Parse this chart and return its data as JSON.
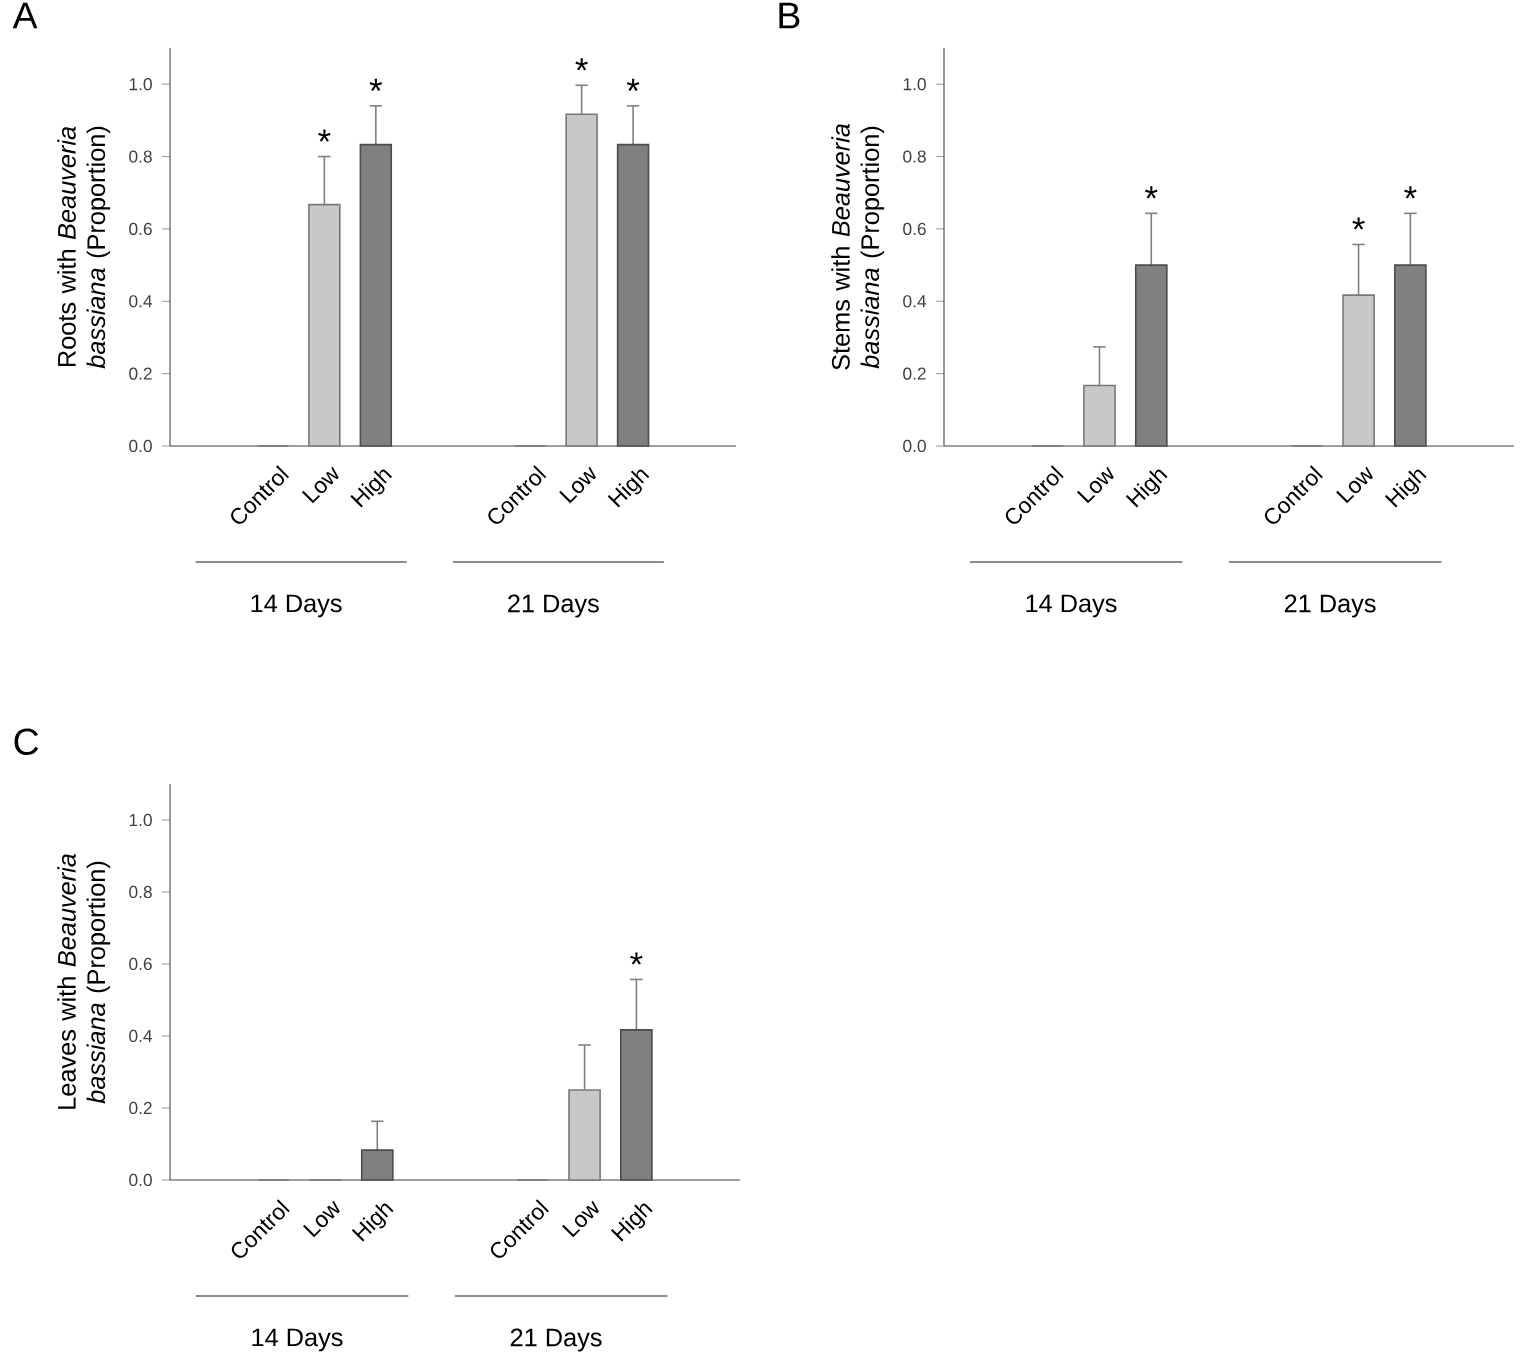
{
  "chart_data": [
    {
      "type": "bar",
      "title": "A",
      "ylabel": "Roots with *Beauveria bassiana* (Proportion)",
      "categories": [
        "Control",
        "Low",
        "High",
        "Control",
        "Low",
        "High"
      ],
      "values": [
        0,
        0.667,
        0.833,
        0,
        0.917,
        0.833
      ],
      "errors": [
        null,
        0.133,
        0.107,
        null,
        0.08,
        0.107
      ],
      "value_labels": [
        null,
        "*",
        "*",
        null,
        "*",
        "*"
      ],
      "colors": [
        "#c8c8c8",
        "#c8c8c8",
        "#808080",
        "#c8c8c8",
        "#c8c8c8",
        "#808080"
      ],
      "annotations": [
        "14 Days",
        "21 Days"
      ],
      "ylim": [
        0,
        1.1
      ],
      "yticks": [
        {
          "value": 0,
          "label": "0.0"
        },
        {
          "value": 0.2,
          "label": "0.2"
        },
        {
          "value": 0.4,
          "label": "0.4"
        },
        {
          "value": 0.6,
          "label": "0.6"
        },
        {
          "value": 0.8,
          "label": "0.8"
        },
        {
          "value": 1.0,
          "label": "1.0"
        }
      ],
      "grid": false
    },
    {
      "type": "bar",
      "title": "B",
      "ylabel": "Stems with *Beauveria bassiana* (Proportion)",
      "categories": [
        "Control",
        "Low",
        "High",
        "Control",
        "Low",
        "High"
      ],
      "values": [
        0,
        0.167,
        0.5,
        0,
        0.417,
        0.5
      ],
      "errors": [
        null,
        0.107,
        0.143,
        null,
        0.14,
        0.143
      ],
      "value_labels": [
        null,
        null,
        "*",
        null,
        "*",
        "*"
      ],
      "colors": [
        "#c8c8c8",
        "#c8c8c8",
        "#808080",
        "#c8c8c8",
        "#c8c8c8",
        "#808080"
      ],
      "annotations": [
        "14 Days",
        "21 Days"
      ],
      "ylim": [
        0,
        1.1
      ],
      "yticks": [
        {
          "value": 0,
          "label": "0.0"
        },
        {
          "value": 0.2,
          "label": "0.2"
        },
        {
          "value": 0.4,
          "label": "0.4"
        },
        {
          "value": 0.6,
          "label": "0.6"
        },
        {
          "value": 0.8,
          "label": "0.8"
        },
        {
          "value": 1.0,
          "label": "1.0"
        }
      ],
      "grid": false
    },
    {
      "type": "bar",
      "title": "C",
      "ylabel": "Leaves with *Beauveria bassiana* (Proportion)",
      "categories": [
        "Control",
        "Low",
        "High",
        "Control",
        "Low",
        "High"
      ],
      "values": [
        0,
        0,
        0.083,
        0,
        0.25,
        0.417
      ],
      "errors": [
        null,
        null,
        0.08,
        null,
        0.125,
        0.14
      ],
      "value_labels": [
        null,
        null,
        null,
        null,
        null,
        "*"
      ],
      "colors": [
        "#c8c8c8",
        "#c8c8c8",
        "#808080",
        "#c8c8c8",
        "#c8c8c8",
        "#808080"
      ],
      "annotations": [
        "14 Days",
        "21 Days"
      ],
      "ylim": [
        0,
        1.1
      ],
      "yticks": [
        {
          "value": 0,
          "label": "0.0"
        },
        {
          "value": 0.2,
          "label": "0.2"
        },
        {
          "value": 0.4,
          "label": "0.4"
        },
        {
          "value": 0.6,
          "label": "0.6"
        },
        {
          "value": 0.8,
          "label": "0.8"
        },
        {
          "value": 1.0,
          "label": "1.0"
        }
      ],
      "grid": false
    }
  ]
}
